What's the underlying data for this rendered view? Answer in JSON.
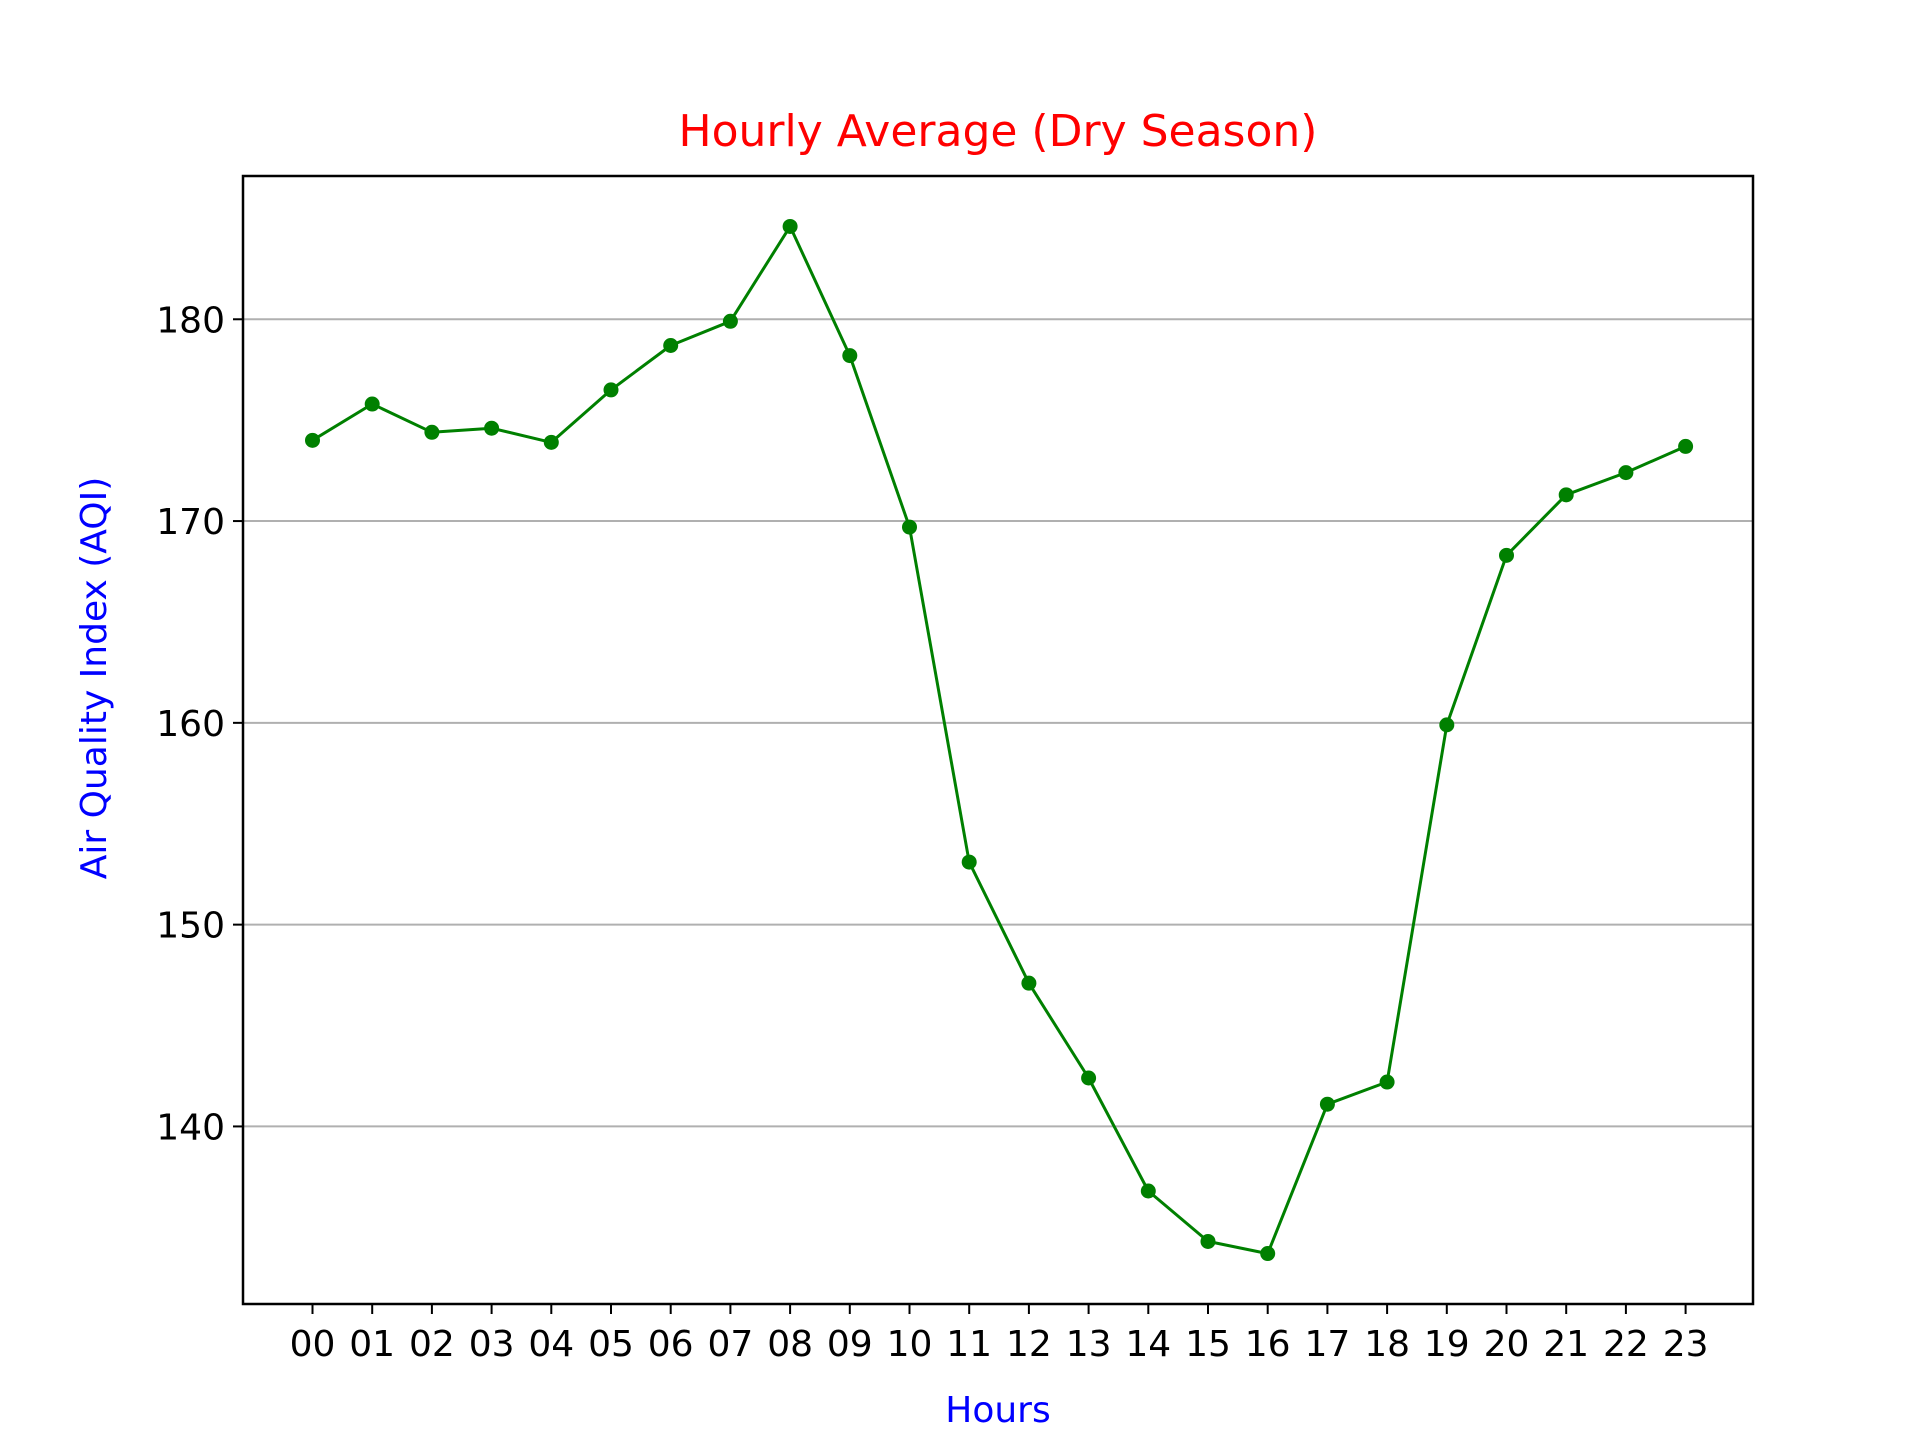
{
  "chart_data": {
    "type": "line",
    "title": "Hourly Average (Dry Season)",
    "xlabel": "Hours",
    "ylabel": "Air Quality Index (AQI)",
    "categories": [
      "00",
      "01",
      "02",
      "03",
      "04",
      "05",
      "06",
      "07",
      "08",
      "09",
      "10",
      "11",
      "12",
      "13",
      "14",
      "15",
      "16",
      "17",
      "18",
      "19",
      "20",
      "21",
      "22",
      "23"
    ],
    "series": [
      {
        "values": [
          174.0,
          175.8,
          174.4,
          174.6,
          173.9,
          176.5,
          178.7,
          179.9,
          184.6,
          178.2,
          169.7,
          153.1,
          147.1,
          142.4,
          136.8,
          134.3,
          133.7,
          141.1,
          142.2,
          159.9,
          168.3,
          171.3,
          172.4,
          173.7
        ]
      }
    ],
    "ylim": [
      131.2,
      187.1
    ],
    "yticks": [
      140,
      150,
      160,
      170,
      180
    ],
    "grid": "horizontal",
    "colors": {
      "line": "#008000",
      "marker": "#008000",
      "title": "#ff0000",
      "axis_label": "#0000ff",
      "grid": "#b0b0b0",
      "frame": "#000000"
    }
  }
}
